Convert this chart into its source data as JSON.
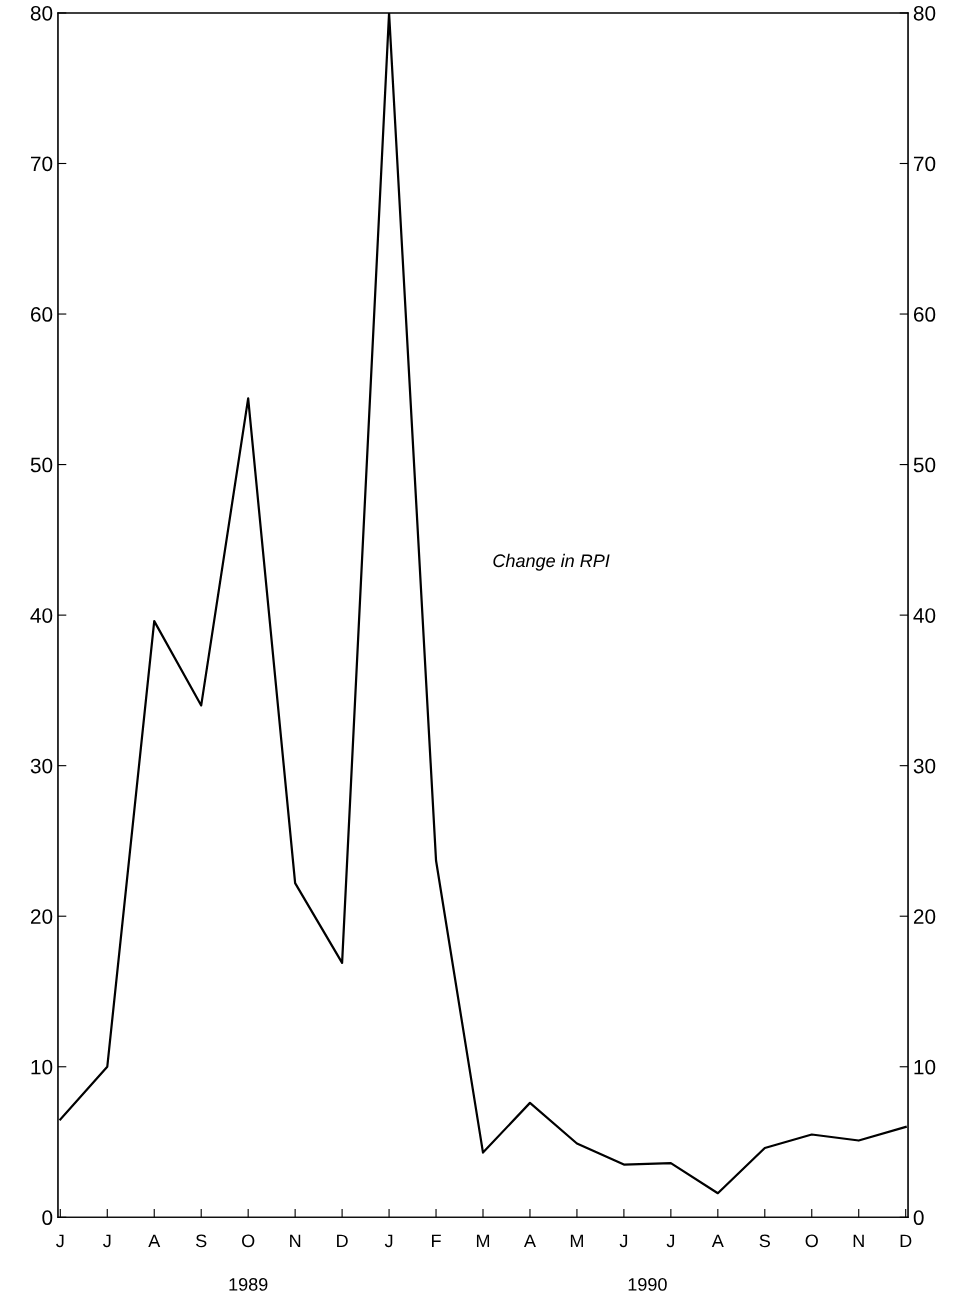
{
  "chart_data": {
    "type": "line",
    "categories": [
      "J",
      "J",
      "A",
      "S",
      "O",
      "N",
      "D",
      "J",
      "F",
      "M",
      "A",
      "M",
      "J",
      "J",
      "A",
      "S",
      "O",
      "N",
      "D"
    ],
    "series": [
      {
        "name": "Change in RPI",
        "color": "#000000",
        "values": [
          6.5,
          10.0,
          39.6,
          34.0,
          54.4,
          22.2,
          16.9,
          80,
          23.7,
          4.3,
          7.6,
          4.9,
          3.5,
          3.6,
          1.6,
          4.6,
          5.5,
          5.1,
          6.0
        ]
      }
    ],
    "ylim": [
      0,
      80
    ],
    "yticks": [
      0,
      10,
      20,
      30,
      40,
      50,
      60,
      70,
      80
    ],
    "y2lim": [
      0,
      80
    ],
    "y2ticks": [
      0,
      10,
      20,
      30,
      40,
      50,
      60,
      70,
      80
    ],
    "annotations": [
      "1989",
      "1990"
    ],
    "grid": false,
    "legend": false,
    "marker": "none",
    "line_style": "solid"
  }
}
